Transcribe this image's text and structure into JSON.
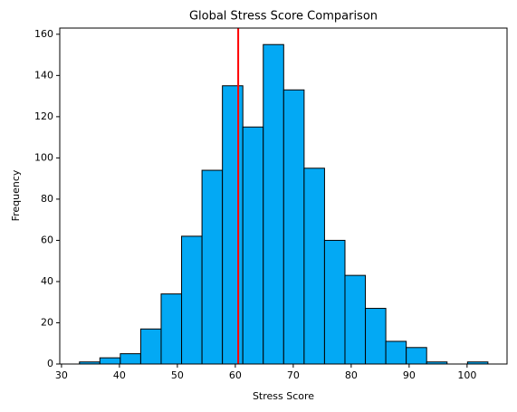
{
  "chart_data": {
    "type": "histogram",
    "title": "Global Stress Score Comparison",
    "x_label": "Stress Score",
    "y_label": "Frequency",
    "bins": [
      33.1,
      36.625,
      40.15,
      43.675,
      47.2,
      50.725,
      54.25,
      57.775,
      61.3,
      64.825,
      68.35,
      71.875,
      75.4,
      78.925,
      82.45,
      85.975,
      89.5,
      93.025,
      96.55,
      100.075,
      103.6
    ],
    "values": [
      1,
      3,
      5,
      17,
      34,
      62,
      94,
      135,
      115,
      155,
      133,
      95,
      60,
      43,
      27,
      11,
      8,
      1,
      0,
      1
    ],
    "color": "#03a9f4",
    "edgecolor": "#000000",
    "vline": {
      "x": 60.5,
      "color": "#ff0000"
    },
    "xlim": [
      29.7,
      106.9
    ],
    "xticks": [
      30,
      40,
      50,
      60,
      70,
      80,
      90,
      100
    ],
    "ylim": [
      0,
      163
    ],
    "yticks": [
      0,
      20,
      40,
      60,
      80,
      100,
      120,
      140,
      160
    ]
  }
}
